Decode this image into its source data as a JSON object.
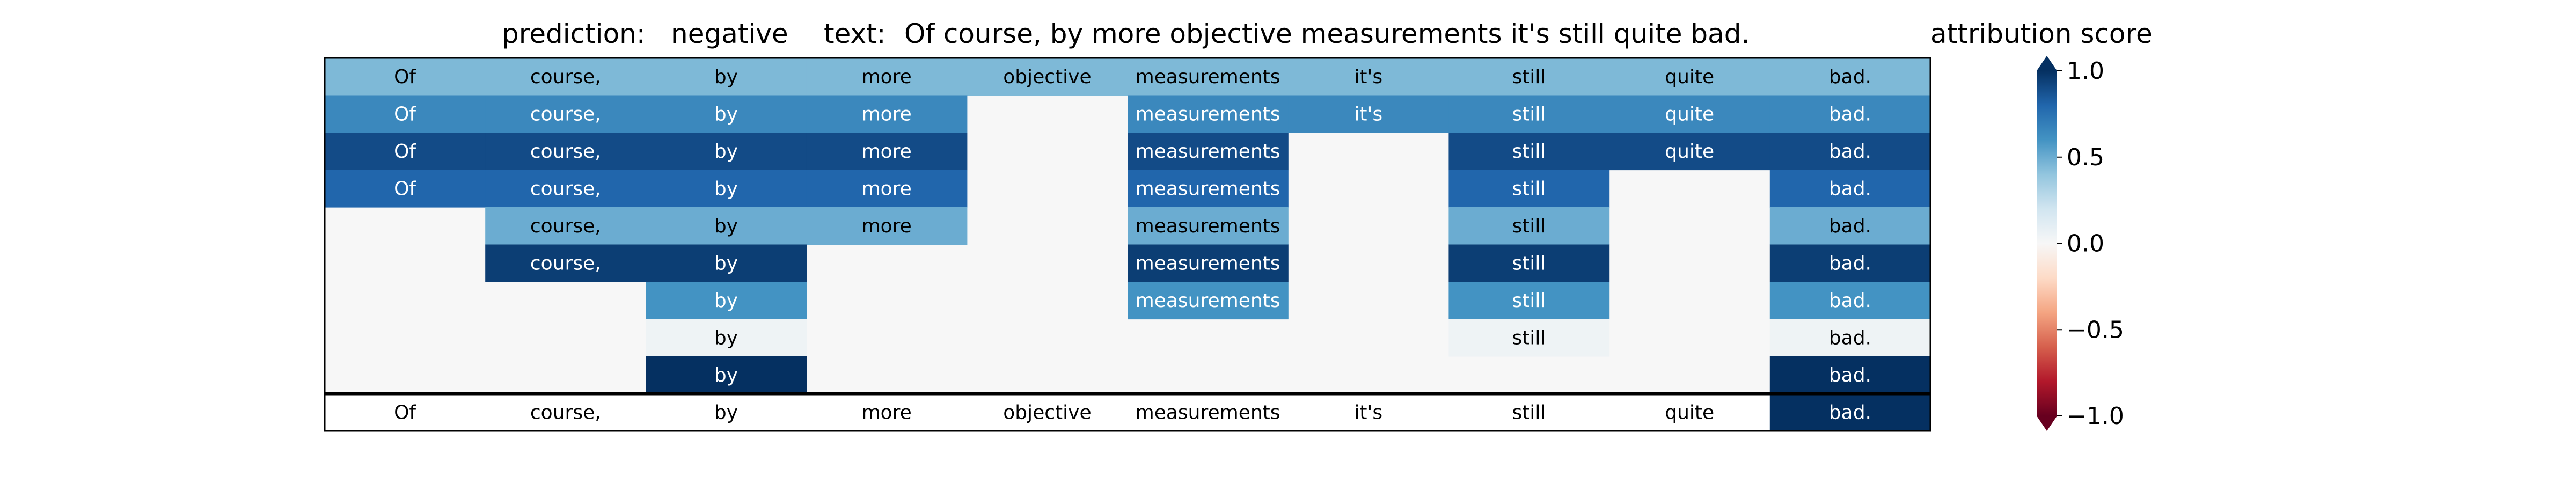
{
  "chart_data": {
    "type": "heatmap",
    "prediction_label": "prediction:",
    "prediction_value": "negative",
    "text_label": "text:",
    "text_value": "Of course, by more objective measurements it's still quite bad.",
    "colorbar_label": "attribution score",
    "colorbar_ticks": [
      {
        "value": 1.0,
        "label": "1.0"
      },
      {
        "value": 0.5,
        "label": "0.5"
      },
      {
        "value": 0.0,
        "label": "0.0"
      },
      {
        "value": -0.5,
        "label": "−0.5"
      },
      {
        "value": -1.0,
        "label": "−1.0"
      }
    ],
    "vmin": -1.0,
    "vmax": 1.0,
    "tokens": [
      "Of",
      "course,",
      "by",
      "more",
      "objective",
      "measurements",
      "it's",
      "still",
      "quite",
      "bad."
    ],
    "rows": [
      [
        0.45,
        0.45,
        0.45,
        0.45,
        0.45,
        0.45,
        0.45,
        0.45,
        0.45,
        0.45
      ],
      [
        0.65,
        0.65,
        0.65,
        0.65,
        null,
        0.65,
        0.65,
        0.65,
        0.65,
        0.65
      ],
      [
        0.9,
        0.9,
        0.9,
        0.9,
        null,
        0.9,
        null,
        0.9,
        0.9,
        0.9
      ],
      [
        0.8,
        0.8,
        0.8,
        0.8,
        null,
        0.8,
        null,
        0.8,
        null,
        0.8
      ],
      [
        null,
        0.5,
        0.5,
        0.5,
        null,
        0.5,
        null,
        0.5,
        null,
        0.5
      ],
      [
        null,
        0.95,
        0.95,
        null,
        null,
        0.95,
        null,
        0.95,
        null,
        0.95
      ],
      [
        null,
        null,
        0.6,
        null,
        null,
        0.6,
        null,
        0.6,
        null,
        0.6
      ],
      [
        null,
        null,
        0.05,
        null,
        null,
        null,
        null,
        0.05,
        null,
        0.05
      ],
      [
        null,
        null,
        1.0,
        null,
        null,
        null,
        null,
        null,
        null,
        1.0
      ]
    ],
    "final_row": [
      0,
      0,
      0,
      0,
      0,
      0,
      0,
      0,
      0,
      1.0
    ]
  }
}
